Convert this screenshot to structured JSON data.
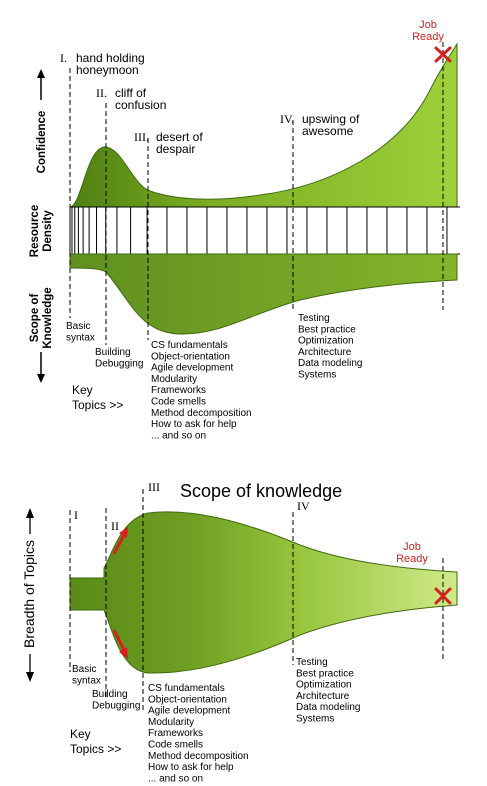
{
  "top": {
    "stages": [
      {
        "numeral": "I.",
        "label_lines": [
          "hand holding",
          "honeymoon"
        ]
      },
      {
        "numeral": "II.",
        "label_lines": [
          "cliff of",
          "confusion"
        ]
      },
      {
        "numeral": "III.",
        "label_lines": [
          "desert of",
          "despair"
        ]
      },
      {
        "numeral": "IV.",
        "label_lines": [
          "upswing of",
          "awesome"
        ]
      }
    ],
    "job_ready_lines": [
      "Job",
      "Ready"
    ],
    "axis_labels": {
      "confidence": "Confidence",
      "resource_density_lines": [
        "Resource",
        "Density"
      ],
      "scope_lines": [
        "Scope of",
        "Knowledge"
      ]
    },
    "topics": {
      "basic": [
        "Basic",
        "syntax"
      ],
      "building": [
        "Building",
        "Debugging"
      ],
      "desert": [
        "CS fundamentals",
        "Object-orientation",
        "Agile development",
        "Modularity",
        "Frameworks",
        "Code smells",
        "Method decomposition",
        "How to ask for help",
        "... and so on"
      ],
      "upswing": [
        "Testing",
        "Best practice",
        "Optimization",
        "Architecture",
        "Data modeling",
        "Systems"
      ]
    },
    "key_topics_lines": [
      "Key",
      "Topics >>"
    ]
  },
  "bottom": {
    "title": "Scope of knowledge",
    "stages": [
      "I",
      "II",
      "III",
      "IV"
    ],
    "job_ready_lines": [
      "Job",
      "Ready"
    ],
    "axis_label": "Breadth of Topics",
    "topics": {
      "basic": [
        "Basic",
        "syntax"
      ],
      "building": [
        "Building",
        "Debugging"
      ],
      "desert": [
        "CS fundamentals",
        "Object-orientation",
        "Agile development",
        "Modularity",
        "Frameworks",
        "Code smells",
        "Method decomposition",
        "How to ask for help",
        "... and so on"
      ],
      "upswing": [
        "Testing",
        "Best practice",
        "Optimization",
        "Architecture",
        "Data modeling",
        "Systems"
      ]
    },
    "key_topics_lines": [
      "Key",
      "Topics >>"
    ]
  },
  "colors": {
    "green_dark": "#5f8f1e",
    "green_mid": "#86b52c",
    "green_light": "#c7e27a",
    "red": "#d4211d"
  }
}
